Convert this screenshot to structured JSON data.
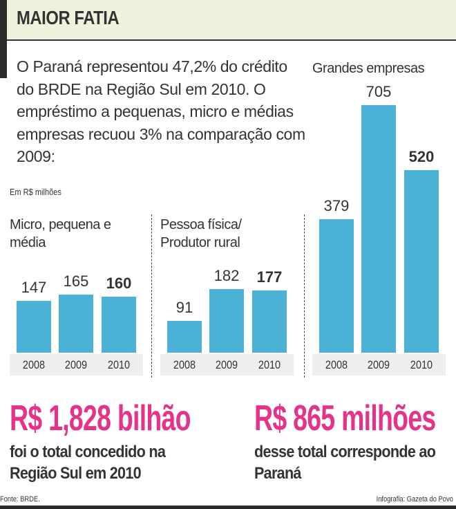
{
  "header": {
    "title": "MAIOR FATIA"
  },
  "intro": "O Paraná representou 47,2% do crédito do BRDE na Região Sul em 2010. O empréstimo a pequenas, micro e médias empresas recuou 3% na comparação com 2009:",
  "colors": {
    "bar": "#4bb1d6",
    "highlight": "#e6338a",
    "header_bg": "#eef3de"
  },
  "chart_data": [
    {
      "type": "bar",
      "title": "Micro, pequena e média",
      "unit": "Em R$ milhões",
      "categories": [
        "2008",
        "2009",
        "2010"
      ],
      "values": [
        147,
        165,
        160
      ]
    },
    {
      "type": "bar",
      "title": "Pessoa física/ Produtor rural",
      "categories": [
        "2008",
        "2009",
        "2010"
      ],
      "values": [
        91,
        182,
        177
      ]
    },
    {
      "type": "bar",
      "title": "Grandes empresas",
      "categories": [
        "2008",
        "2009",
        "2010"
      ],
      "values": [
        379,
        705,
        520
      ]
    }
  ],
  "totals": [
    {
      "value": "R$ 1,828 bilhão",
      "text": "foi o total concedido na Região Sul em 2010"
    },
    {
      "value": "R$ 865 milhões",
      "text": "desse total corresponde ao Paraná"
    }
  ],
  "footer": {
    "source": "Fonte: BRDE.",
    "credit": "Infografia: Gazeta do Povo"
  }
}
